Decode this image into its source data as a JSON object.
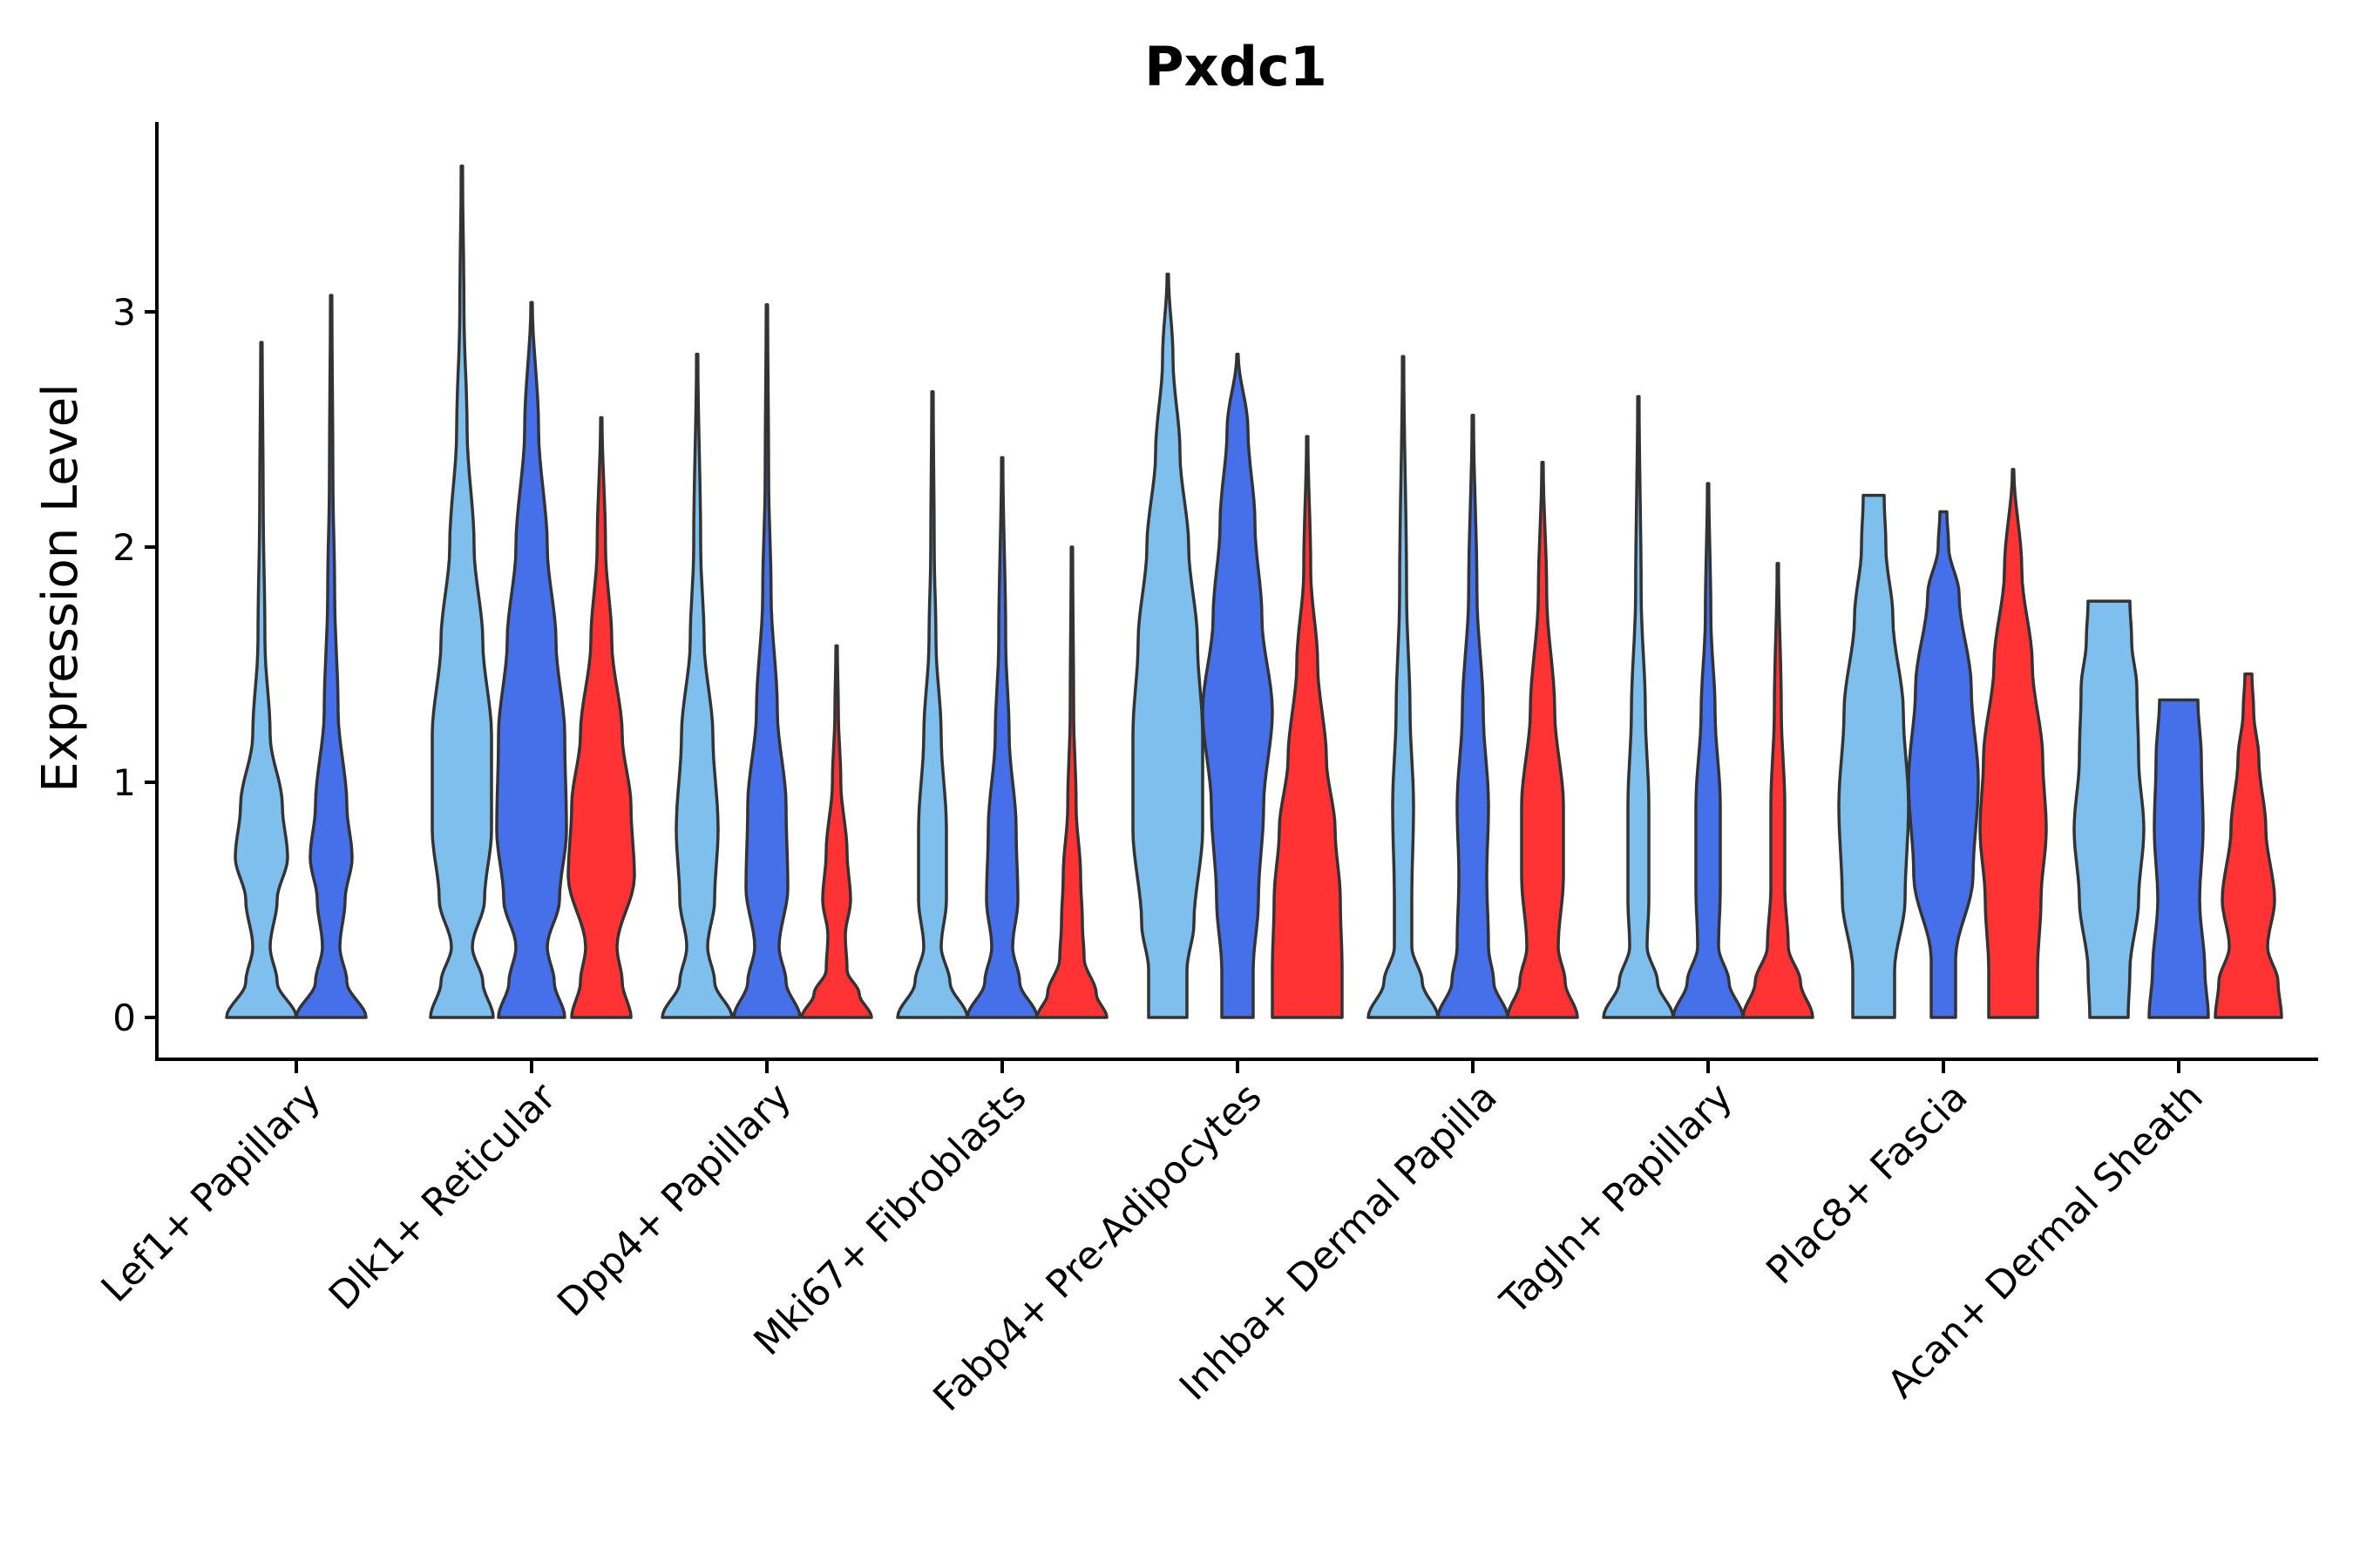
{
  "chart_data": {
    "type": "violin",
    "title": "Pxdc1",
    "xlabel": "",
    "ylabel": "Expression Level",
    "ylim": [
      -0.18,
      3.8
    ],
    "yticks": [
      0,
      1,
      2,
      3
    ],
    "grid": false,
    "legend": "none",
    "categories": [
      "Lef1+ Papillary",
      "Dlk1+ Reticular",
      "Dpp4+ Papillary",
      "Mki67+ Fibroblasts",
      "Fabp4+ Pre-Adipocytes",
      "Inhba+ Dermal Papilla",
      "Tagln+ Papillary",
      "Plac8+ Fascia",
      "Acan+ Dermal Sheath"
    ],
    "groups": [
      {
        "name": "group-1",
        "color": "#7fbfed"
      },
      {
        "name": "group-2",
        "color": "#4570ea"
      },
      {
        "name": "group-3",
        "color": "#ff3333"
      }
    ],
    "violins": [
      {
        "category": 0,
        "group": 0,
        "max": 2.87,
        "shape": [
          [
            0,
            1.0
          ],
          [
            0.15,
            0.45
          ],
          [
            0.3,
            0.25
          ],
          [
            0.5,
            0.45
          ],
          [
            0.68,
            0.75
          ],
          [
            0.9,
            0.6
          ],
          [
            1.2,
            0.25
          ],
          [
            1.6,
            0.1
          ],
          [
            2.2,
            0.05
          ],
          [
            2.87,
            0.02
          ]
        ]
      },
      {
        "category": 0,
        "group": 1,
        "max": 3.07,
        "shape": [
          [
            0,
            1.0
          ],
          [
            0.15,
            0.45
          ],
          [
            0.3,
            0.25
          ],
          [
            0.5,
            0.4
          ],
          [
            0.68,
            0.6
          ],
          [
            0.9,
            0.45
          ],
          [
            1.3,
            0.2
          ],
          [
            1.8,
            0.1
          ],
          [
            2.3,
            0.05
          ],
          [
            3.07,
            0.02
          ]
        ]
      },
      {
        "category": 1,
        "group": 0,
        "max": 3.62,
        "shape": [
          [
            0,
            0.9
          ],
          [
            0.15,
            0.6
          ],
          [
            0.3,
            0.3
          ],
          [
            0.5,
            0.65
          ],
          [
            0.8,
            0.85
          ],
          [
            1.2,
            0.85
          ],
          [
            1.6,
            0.6
          ],
          [
            2.0,
            0.35
          ],
          [
            2.5,
            0.15
          ],
          [
            3.0,
            0.06
          ],
          [
            3.62,
            0.02
          ]
        ]
      },
      {
        "category": 1,
        "group": 1,
        "max": 3.04,
        "shape": [
          [
            0,
            0.95
          ],
          [
            0.15,
            0.65
          ],
          [
            0.3,
            0.45
          ],
          [
            0.5,
            0.8
          ],
          [
            0.8,
            1.0
          ],
          [
            1.2,
            0.95
          ],
          [
            1.6,
            0.7
          ],
          [
            2.0,
            0.45
          ],
          [
            2.5,
            0.2
          ],
          [
            3.04,
            0.02
          ]
        ]
      },
      {
        "category": 1,
        "group": 2,
        "max": 2.55,
        "shape": [
          [
            0,
            0.85
          ],
          [
            0.15,
            0.6
          ],
          [
            0.3,
            0.45
          ],
          [
            0.6,
            0.95
          ],
          [
            0.9,
            0.85
          ],
          [
            1.2,
            0.6
          ],
          [
            1.6,
            0.3
          ],
          [
            2.0,
            0.12
          ],
          [
            2.55,
            0.02
          ]
        ]
      },
      {
        "category": 2,
        "group": 0,
        "max": 2.82,
        "shape": [
          [
            0,
            1.0
          ],
          [
            0.15,
            0.5
          ],
          [
            0.3,
            0.3
          ],
          [
            0.5,
            0.5
          ],
          [
            0.8,
            0.6
          ],
          [
            1.2,
            0.45
          ],
          [
            1.6,
            0.2
          ],
          [
            2.0,
            0.1
          ],
          [
            2.82,
            0.02
          ]
        ]
      },
      {
        "category": 2,
        "group": 1,
        "max": 3.03,
        "shape": [
          [
            0,
            0.95
          ],
          [
            0.15,
            0.55
          ],
          [
            0.3,
            0.35
          ],
          [
            0.55,
            0.6
          ],
          [
            0.9,
            0.55
          ],
          [
            1.3,
            0.3
          ],
          [
            1.8,
            0.12
          ],
          [
            2.3,
            0.05
          ],
          [
            3.03,
            0.02
          ]
        ]
      },
      {
        "category": 2,
        "group": 2,
        "max": 1.58,
        "shape": [
          [
            0,
            1.0
          ],
          [
            0.1,
            0.65
          ],
          [
            0.2,
            0.3
          ],
          [
            0.35,
            0.25
          ],
          [
            0.5,
            0.4
          ],
          [
            0.7,
            0.3
          ],
          [
            1.0,
            0.12
          ],
          [
            1.3,
            0.05
          ],
          [
            1.58,
            0.02
          ]
        ]
      },
      {
        "category": 3,
        "group": 0,
        "max": 2.66,
        "shape": [
          [
            0,
            1.0
          ],
          [
            0.15,
            0.5
          ],
          [
            0.3,
            0.25
          ],
          [
            0.5,
            0.4
          ],
          [
            0.8,
            0.4
          ],
          [
            1.2,
            0.25
          ],
          [
            1.6,
            0.1
          ],
          [
            2.0,
            0.05
          ],
          [
            2.66,
            0.02
          ]
        ]
      },
      {
        "category": 3,
        "group": 1,
        "max": 2.38,
        "shape": [
          [
            0,
            1.0
          ],
          [
            0.15,
            0.5
          ],
          [
            0.3,
            0.3
          ],
          [
            0.5,
            0.45
          ],
          [
            0.8,
            0.4
          ],
          [
            1.2,
            0.2
          ],
          [
            1.6,
            0.1
          ],
          [
            2.38,
            0.02
          ]
        ]
      },
      {
        "category": 3,
        "group": 2,
        "max": 2.0,
        "shape": [
          [
            0,
            1.0
          ],
          [
            0.1,
            0.7
          ],
          [
            0.25,
            0.35
          ],
          [
            0.4,
            0.3
          ],
          [
            0.6,
            0.25
          ],
          [
            0.9,
            0.12
          ],
          [
            1.3,
            0.05
          ],
          [
            2.0,
            0.02
          ]
        ]
      },
      {
        "category": 4,
        "group": 0,
        "max": 3.16,
        "shape": [
          [
            0,
            0.55
          ],
          [
            0.2,
            0.55
          ],
          [
            0.4,
            0.75
          ],
          [
            0.8,
            1.0
          ],
          [
            1.2,
            1.0
          ],
          [
            1.6,
            0.85
          ],
          [
            2.0,
            0.6
          ],
          [
            2.4,
            0.35
          ],
          [
            2.8,
            0.15
          ],
          [
            3.16,
            0.02
          ]
        ]
      },
      {
        "category": 4,
        "group": 1,
        "max": 2.82,
        "shape": [
          [
            0,
            0.45
          ],
          [
            0.2,
            0.45
          ],
          [
            0.5,
            0.6
          ],
          [
            0.9,
            0.75
          ],
          [
            1.3,
            1.0
          ],
          [
            1.7,
            0.7
          ],
          [
            2.1,
            0.5
          ],
          [
            2.5,
            0.3
          ],
          [
            2.82,
            0.02
          ]
        ]
      },
      {
        "category": 4,
        "group": 2,
        "max": 2.47,
        "shape": [
          [
            0,
            1.0
          ],
          [
            0.2,
            1.0
          ],
          [
            0.5,
            0.95
          ],
          [
            0.8,
            0.8
          ],
          [
            1.1,
            0.55
          ],
          [
            1.5,
            0.3
          ],
          [
            1.9,
            0.1
          ],
          [
            2.47,
            0.02
          ]
        ]
      },
      {
        "category": 5,
        "group": 0,
        "max": 2.81,
        "shape": [
          [
            0,
            1.0
          ],
          [
            0.15,
            0.55
          ],
          [
            0.3,
            0.25
          ],
          [
            0.5,
            0.25
          ],
          [
            0.9,
            0.3
          ],
          [
            1.3,
            0.2
          ],
          [
            1.8,
            0.1
          ],
          [
            2.81,
            0.02
          ]
        ]
      },
      {
        "category": 5,
        "group": 1,
        "max": 2.56,
        "shape": [
          [
            0,
            1.0
          ],
          [
            0.15,
            0.6
          ],
          [
            0.3,
            0.45
          ],
          [
            0.6,
            0.4
          ],
          [
            0.9,
            0.45
          ],
          [
            1.3,
            0.3
          ],
          [
            1.8,
            0.12
          ],
          [
            2.56,
            0.02
          ]
        ]
      },
      {
        "category": 5,
        "group": 2,
        "max": 2.36,
        "shape": [
          [
            0,
            1.0
          ],
          [
            0.15,
            0.65
          ],
          [
            0.3,
            0.45
          ],
          [
            0.6,
            0.6
          ],
          [
            0.9,
            0.6
          ],
          [
            1.3,
            0.35
          ],
          [
            1.8,
            0.12
          ],
          [
            2.36,
            0.02
          ]
        ]
      },
      {
        "category": 6,
        "group": 0,
        "max": 2.64,
        "shape": [
          [
            0,
            1.0
          ],
          [
            0.15,
            0.55
          ],
          [
            0.3,
            0.25
          ],
          [
            0.5,
            0.3
          ],
          [
            0.9,
            0.3
          ],
          [
            1.3,
            0.2
          ],
          [
            1.8,
            0.08
          ],
          [
            2.64,
            0.02
          ]
        ]
      },
      {
        "category": 6,
        "group": 1,
        "max": 2.27,
        "shape": [
          [
            0,
            1.0
          ],
          [
            0.15,
            0.6
          ],
          [
            0.3,
            0.3
          ],
          [
            0.55,
            0.35
          ],
          [
            0.9,
            0.35
          ],
          [
            1.3,
            0.2
          ],
          [
            1.7,
            0.08
          ],
          [
            2.27,
            0.02
          ]
        ]
      },
      {
        "category": 6,
        "group": 2,
        "max": 1.93,
        "shape": [
          [
            0,
            1.0
          ],
          [
            0.15,
            0.65
          ],
          [
            0.3,
            0.3
          ],
          [
            0.55,
            0.2
          ],
          [
            0.9,
            0.2
          ],
          [
            1.3,
            0.1
          ],
          [
            1.93,
            0.02
          ]
        ]
      },
      {
        "category": 7,
        "group": 0,
        "max": 2.22,
        "shape": [
          [
            0,
            0.6
          ],
          [
            0.2,
            0.6
          ],
          [
            0.5,
            0.9
          ],
          [
            0.9,
            1.0
          ],
          [
            1.3,
            0.85
          ],
          [
            1.7,
            0.55
          ],
          [
            2.0,
            0.35
          ],
          [
            2.22,
            0.3
          ]
        ]
      },
      {
        "category": 7,
        "group": 1,
        "max": 2.15,
        "shape": [
          [
            0,
            0.35
          ],
          [
            0.25,
            0.35
          ],
          [
            0.6,
            0.85
          ],
          [
            1.0,
            1.0
          ],
          [
            1.4,
            0.8
          ],
          [
            1.8,
            0.45
          ],
          [
            2.0,
            0.15
          ],
          [
            2.15,
            0.1
          ]
        ]
      },
      {
        "category": 7,
        "group": 2,
        "max": 2.33,
        "shape": [
          [
            0,
            0.7
          ],
          [
            0.2,
            0.7
          ],
          [
            0.5,
            0.8
          ],
          [
            0.8,
            0.95
          ],
          [
            1.1,
            0.85
          ],
          [
            1.5,
            0.55
          ],
          [
            1.9,
            0.25
          ],
          [
            2.33,
            0.02
          ]
        ]
      },
      {
        "category": 8,
        "group": 0,
        "max": 1.77,
        "shape": [
          [
            0,
            0.55
          ],
          [
            0.2,
            0.6
          ],
          [
            0.5,
            0.85
          ],
          [
            0.8,
            1.0
          ],
          [
            1.1,
            0.85
          ],
          [
            1.4,
            0.8
          ],
          [
            1.6,
            0.65
          ],
          [
            1.77,
            0.6
          ]
        ]
      },
      {
        "category": 8,
        "group": 1,
        "max": 1.35,
        "shape": [
          [
            0,
            0.85
          ],
          [
            0.2,
            0.75
          ],
          [
            0.5,
            0.6
          ],
          [
            0.8,
            0.7
          ],
          [
            1.1,
            0.65
          ],
          [
            1.35,
            0.55
          ]
        ]
      },
      {
        "category": 8,
        "group": 2,
        "max": 1.46,
        "shape": [
          [
            0,
            0.95
          ],
          [
            0.15,
            0.85
          ],
          [
            0.3,
            0.55
          ],
          [
            0.5,
            0.75
          ],
          [
            0.8,
            0.5
          ],
          [
            1.1,
            0.3
          ],
          [
            1.3,
            0.15
          ],
          [
            1.46,
            0.1
          ]
        ]
      }
    ]
  }
}
